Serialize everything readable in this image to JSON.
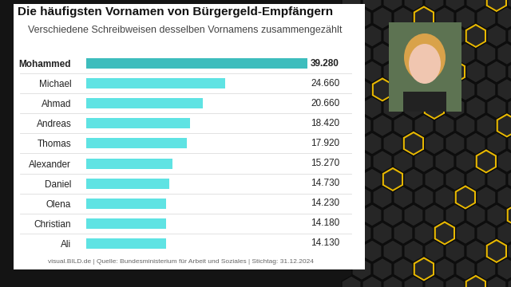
{
  "chart_data": {
    "type": "bar",
    "orientation": "horizontal",
    "title": "Die häufigsten Vornamen von Bürgergeld-Empfängern",
    "subtitle": "Verschiedene Schreibweisen desselben Vornamens zusammengezählt",
    "source": "visual.BILD.de | Quelle: Bundesministerium für Arbeit und Soziales | Stichtag: 31.12.2024",
    "categories": [
      "Mohammed",
      "Michael",
      "Ahmad",
      "Andreas",
      "Thomas",
      "Alexander",
      "Daniel",
      "Olena",
      "Christian",
      "Ali"
    ],
    "values": [
      39280,
      24660,
      20660,
      18420,
      17920,
      15270,
      14730,
      14230,
      14180,
      14130
    ],
    "value_labels": [
      "39.280",
      "24.660",
      "20.660",
      "18.420",
      "17.920",
      "15.270",
      "14.730",
      "14.230",
      "14.180",
      "14.130"
    ],
    "colors": [
      "#3dbdbd",
      "#5fe3e3",
      "#5fe3e3",
      "#5fe3e3",
      "#5fe3e3",
      "#5fe3e3",
      "#5fe3e3",
      "#5fe3e3",
      "#5fe3e3",
      "#5fe3e3"
    ],
    "xlim": [
      0,
      39280
    ],
    "data_labels": true,
    "tick_labels": "y",
    "grid": false
  }
}
